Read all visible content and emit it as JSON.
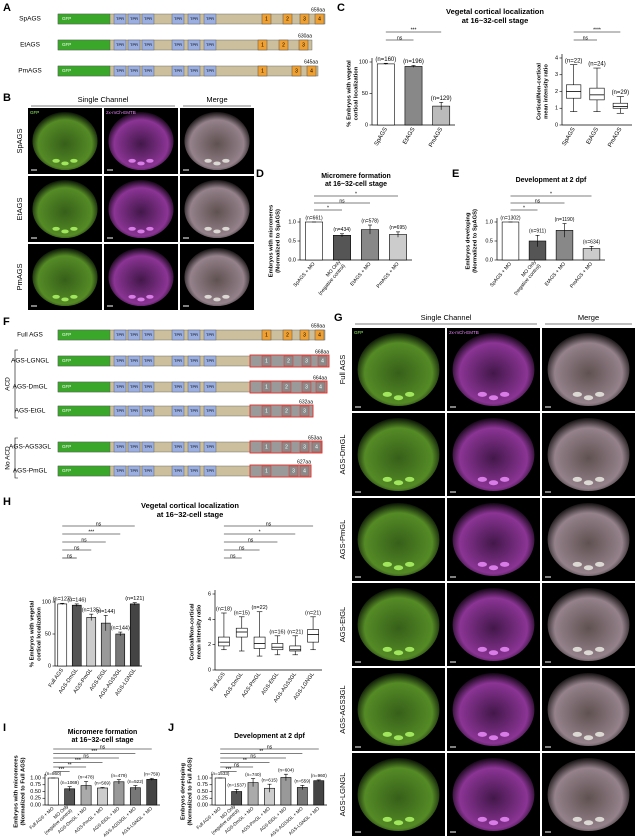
{
  "panel_labels": [
    "A",
    "B",
    "C",
    "D",
    "E",
    "F",
    "G",
    "H",
    "I",
    "J"
  ],
  "panel_titles": {
    "C": [
      "Vegetal cortical localization",
      "at 16~32-cell stage"
    ],
    "H": [
      "Vegetal cortical localization",
      "at 16~32-cell stage"
    ]
  },
  "domain_words": {
    "gfp": "GFP",
    "tpr": "TPR"
  },
  "diagrams_A": [
    {
      "name": "SpAGS",
      "length": "659aa",
      "motifs": [
        "1",
        "2",
        "3",
        "4"
      ]
    },
    {
      "name": "EtAGS",
      "length": "630aa",
      "motifs": [
        "1",
        "2",
        "3"
      ]
    },
    {
      "name": "PmAGS",
      "length": "645aa",
      "motifs": [
        "1",
        "3",
        "4"
      ]
    }
  ],
  "diagrams_F": {
    "groups": [
      "ACD",
      "No ACD"
    ],
    "rows": [
      {
        "name": "Full AGS",
        "length": "659aa",
        "motifs": [
          "1",
          "2",
          "3",
          "4"
        ]
      },
      {
        "name": "AGS-LGNGL",
        "length": "668aa",
        "motifs": [
          "1",
          "2",
          "3",
          "4"
        ]
      },
      {
        "name": "AGS-DmGL",
        "length": "664aa",
        "motifs": [
          "1",
          "2",
          "3",
          "4"
        ]
      },
      {
        "name": "AGS-EtGL",
        "length": "632aa",
        "motifs": [
          "1",
          "2",
          "3"
        ]
      },
      {
        "name": "AGS-AGS3GL",
        "length": "653aa",
        "motifs": [
          "1",
          "2",
          "3",
          "4"
        ]
      },
      {
        "name": "AGS-PmGL",
        "length": "627aa",
        "motifs": [
          "1",
          "3",
          "4"
        ]
      }
    ]
  },
  "images_B": {
    "header": "Single Channel",
    "merge": "Merge",
    "channels": [
      "GFP",
      "2x-mCh-EMTB"
    ],
    "rows": [
      "SpAGS",
      "EtAGS",
      "PmAGS"
    ]
  },
  "images_G": {
    "header": "Single Channel",
    "merge": "Merge",
    "channels": [
      "GFP",
      "2x-mCh-EMTB"
    ],
    "rows": [
      "Full AGS",
      "AGS-DmGL",
      "AGS-PmGL",
      "AGS-EtGL",
      "AGS-AGS3GL",
      "AGS-LGNGL"
    ]
  },
  "chart_data": [
    {
      "type": "bar",
      "ylabel": [
        "% Embryos with vegetal",
        "cortical localization"
      ],
      "categories": [
        [
          "SpAGS"
        ],
        [
          "EtAGS"
        ],
        [
          "PmAGS"
        ]
      ],
      "values": [
        97,
        93,
        30
      ],
      "errors": [
        1,
        1.5,
        6
      ],
      "n_labels": [
        "(n=160)",
        "(n=196)",
        "(n=129)"
      ],
      "colors": [
        "#ffffff",
        "#888888",
        "#bbbbbb"
      ],
      "ylim": [
        0,
        100
      ],
      "yticks": [
        0,
        50,
        100
      ],
      "comparisons": [
        {
          "pair": [
            0,
            2
          ],
          "label": "***"
        },
        {
          "pair": [
            0,
            1
          ],
          "label": "ns"
        }
      ]
    },
    {
      "type": "box",
      "ylabel": [
        "Cortical/Non-cortical",
        "mean intensity ratio"
      ],
      "categories": [
        [
          "SpAGS"
        ],
        [
          "EtAGS"
        ],
        [
          "PmAGS"
        ]
      ],
      "boxes": [
        {
          "min": 0.8,
          "q1": 1.6,
          "median": 2.0,
          "q3": 2.4,
          "max": 3.6
        },
        {
          "min": 0.8,
          "q1": 1.5,
          "median": 1.8,
          "q3": 2.2,
          "max": 3.4
        },
        {
          "min": 0.7,
          "q1": 1.0,
          "median": 1.1,
          "q3": 1.3,
          "max": 1.7
        }
      ],
      "n_labels": [
        "(n=22)",
        "(n=24)",
        "(n=29)"
      ],
      "ylim": [
        0,
        4
      ],
      "yticks": [
        0,
        1,
        2,
        3,
        4
      ],
      "comparisons": [
        {
          "pair": [
            0,
            2
          ],
          "label": "****"
        },
        {
          "pair": [
            0,
            1
          ],
          "label": "ns"
        }
      ]
    },
    {
      "type": "bar",
      "title": [
        "Micromere formation",
        "at 16~32-cell stage"
      ],
      "ylabel": [
        "Embryos with micromeres",
        "(Normalized to SpAGS)"
      ],
      "categories": [
        [
          "SpAGS + MO"
        ],
        [
          "MO Only",
          "(negative control)"
        ],
        [
          "EtAGS + MO"
        ],
        [
          "PmAGS + MO"
        ]
      ],
      "values": [
        1,
        0.65,
        0.8,
        0.67
      ],
      "errors": [
        0,
        0.04,
        0.12,
        0.07
      ],
      "n_labels": [
        "(n=661)",
        "(n=434)",
        "(n=578)",
        "(n=695)"
      ],
      "colors": [
        "#ffffff",
        "#555555",
        "#888888",
        "#cccccc"
      ],
      "ylim": [
        0,
        1
      ],
      "yticks": [
        {
          "value": 0,
          "label": "0.0"
        },
        0.5,
        {
          "value": 1,
          "label": "1.0"
        }
      ],
      "comparisons": [
        {
          "pair": [
            0,
            3
          ],
          "label": "*"
        },
        {
          "pair": [
            0,
            2
          ],
          "label": "ns"
        },
        {
          "pair": [
            0,
            1
          ],
          "label": "*"
        }
      ]
    },
    {
      "type": "bar",
      "title": [
        "Development at 2 dpf"
      ],
      "ylabel": [
        "Embryos developing",
        "(Normalized to SpAGS)"
      ],
      "categories": [
        [
          "SpAGS + MO"
        ],
        [
          "MO Only",
          "(negative control)"
        ],
        [
          "EtAGS + MO"
        ],
        [
          "PmAGS + MO"
        ]
      ],
      "values": [
        1,
        0.5,
        0.78,
        0.3
      ],
      "errors": [
        0,
        0.15,
        0.18,
        0.06
      ],
      "n_labels": [
        "(n=1302)",
        "(n=911)",
        "(n=1190)",
        "(n=634)"
      ],
      "colors": [
        "#ffffff",
        "#555555",
        "#888888",
        "#cccccc"
      ],
      "ylim": [
        0,
        1
      ],
      "yticks": [
        {
          "value": 0,
          "label": "0.0"
        },
        0.5,
        {
          "value": 1,
          "label": "1.0"
        }
      ],
      "comparisons": [
        {
          "pair": [
            0,
            3
          ],
          "label": "*"
        },
        {
          "pair": [
            0,
            2
          ],
          "label": "ns"
        },
        {
          "pair": [
            0,
            1
          ],
          "label": "*"
        }
      ]
    },
    {
      "type": "bar",
      "ylabel": [
        "% Embryos with vegetal",
        "cortical localization"
      ],
      "categories": [
        [
          "Full AGS"
        ],
        [
          "AGS-DmGL"
        ],
        [
          "AGS-PmGL"
        ],
        [
          "AGS-EtGL"
        ],
        [
          "AGS-AGS3GL"
        ],
        [
          "AGS-LGNGL"
        ]
      ],
      "values": [
        97,
        95,
        76,
        67,
        50,
        97
      ],
      "errors": [
        1,
        2,
        5,
        12,
        3,
        2
      ],
      "n_labels": [
        "(n=127)",
        "(n=146)",
        "(n=135)",
        "(n=144)",
        "(n=144)",
        "(n=121)"
      ],
      "colors": [
        "#ffffff",
        "#555555",
        "#cccccc",
        "#999999",
        "#777777",
        "#444444"
      ],
      "ylim": [
        0,
        100
      ],
      "yticks": [
        0,
        50,
        100
      ],
      "comparisons": [
        {
          "pair": [
            0,
            5
          ],
          "label": "ns"
        },
        {
          "pair": [
            0,
            4
          ],
          "label": "***"
        },
        {
          "pair": [
            0,
            3
          ],
          "label": "ns"
        },
        {
          "pair": [
            0,
            2
          ],
          "label": "ns"
        },
        {
          "pair": [
            0,
            1
          ],
          "label": "ns"
        }
      ]
    },
    {
      "type": "box",
      "ylabel": [
        "Cortical/Non-cortical",
        "mean intensity ratio"
      ],
      "categories": [
        [
          "Full AGS"
        ],
        [
          "AGS-DmGL"
        ],
        [
          "AGS-PmGL"
        ],
        [
          "AGS-EtGL"
        ],
        [
          "AGS-AGS3GL"
        ],
        [
          "AGS-LGNGL"
        ]
      ],
      "boxes": [
        {
          "min": 1.6,
          "q1": 1.9,
          "median": 2.2,
          "q3": 2.6,
          "max": 4.5
        },
        {
          "min": 1.5,
          "q1": 2.6,
          "median": 3.0,
          "q3": 3.3,
          "max": 4.2
        },
        {
          "min": 1.1,
          "q1": 1.7,
          "median": 2.1,
          "q3": 2.6,
          "max": 4.6
        },
        {
          "min": 1.2,
          "q1": 1.6,
          "median": 1.8,
          "q3": 2.1,
          "max": 2.7
        },
        {
          "min": 1.2,
          "q1": 1.5,
          "median": 1.6,
          "q3": 1.9,
          "max": 2.7
        },
        {
          "min": 1.6,
          "q1": 2.2,
          "median": 2.8,
          "q3": 3.2,
          "max": 4.2
        }
      ],
      "n_labels": [
        "(n=18)",
        "(n=15)",
        "(n=22)",
        "(n=16)",
        "(n=21)",
        "(n=21)"
      ],
      "ylim": [
        0,
        6
      ],
      "yticks": [
        0,
        2,
        4,
        6
      ],
      "comparisons": [
        {
          "pair": [
            0,
            5
          ],
          "label": "ns"
        },
        {
          "pair": [
            0,
            4
          ],
          "label": "*"
        },
        {
          "pair": [
            0,
            3
          ],
          "label": "ns"
        },
        {
          "pair": [
            0,
            2
          ],
          "label": "ns"
        },
        {
          "pair": [
            0,
            1
          ],
          "label": "ns"
        }
      ]
    },
    {
      "type": "bar",
      "title": [
        "Micromere formation",
        "at 16~32-cell stage"
      ],
      "ylabel": [
        "Embryos with micromeres",
        "(Normalized to Full AGS)"
      ],
      "categories": [
        [
          "Full AGS + MO"
        ],
        [
          "MO Only",
          "(negative control)"
        ],
        [
          "AGS-DmGL + MO"
        ],
        [
          "AGS-PmGL + MO"
        ],
        [
          "AGS-EtGL + MO"
        ],
        [
          "AGS-AGS3GL + MO"
        ],
        [
          "AGS-LGNGL + MO"
        ]
      ],
      "values": [
        1,
        0.6,
        0.72,
        0.63,
        0.86,
        0.64,
        0.95
      ],
      "errors": [
        0,
        0.08,
        0.15,
        0.02,
        0.08,
        0.08,
        0.04
      ],
      "n_labels": [
        "(n=860)",
        "(n=1069)",
        "(n=478)",
        "(n=569)",
        "(n=479)",
        "(n=522)",
        "(n=759)"
      ],
      "colors": [
        "#ffffff",
        "#555555",
        "#aaaaaa",
        "#cccccc",
        "#999999",
        "#777777",
        "#444444"
      ],
      "ylim": [
        0,
        1
      ],
      "yticks": [
        {
          "value": 0,
          "label": "0.00"
        },
        {
          "value": 0.25,
          "label": "0.25"
        },
        {
          "value": 0.5,
          "label": "0.50"
        },
        {
          "value": 0.75,
          "label": "0.75"
        },
        {
          "value": 1,
          "label": "1.00"
        }
      ],
      "comparisons": [
        {
          "pair": [
            0,
            6
          ],
          "label": "ns"
        },
        {
          "pair": [
            0,
            5
          ],
          "label": "***"
        },
        {
          "pair": [
            0,
            4
          ],
          "label": "ns"
        },
        {
          "pair": [
            0,
            3
          ],
          "label": "***"
        },
        {
          "pair": [
            0,
            2
          ],
          "label": "**"
        },
        {
          "pair": [
            0,
            1
          ],
          "label": "***"
        }
      ]
    },
    {
      "type": "bar",
      "title": [
        "Development at 2 dpf"
      ],
      "ylabel": [
        "Embryos developing",
        "(Normalized to Full AGS)"
      ],
      "categories": [
        [
          "Full AGS + MO"
        ],
        [
          "MO Only",
          "(negative control)"
        ],
        [
          "AGS-DmGL + MO"
        ],
        [
          "AGS-PmGL + MO"
        ],
        [
          "AGS-EtGL + MO"
        ],
        [
          "AGS-AGS3GL + MO"
        ],
        [
          "AGS-LGNGL + MO"
        ]
      ],
      "values": [
        1,
        0.5,
        0.83,
        0.62,
        1.02,
        0.65,
        0.9
      ],
      "errors": [
        0,
        0.08,
        0.15,
        0.15,
        0.12,
        0.08,
        0.03
      ],
      "n_labels": [
        "(n=1533)",
        "(n=1537)",
        "(n=740)",
        "(n=615)",
        "(n=604)",
        "(n=559)",
        "(n=960)"
      ],
      "colors": [
        "#ffffff",
        "#555555",
        "#aaaaaa",
        "#cccccc",
        "#999999",
        "#777777",
        "#444444"
      ],
      "ylim": [
        0,
        1
      ],
      "yticks": [
        {
          "value": 0,
          "label": "0.00"
        },
        {
          "value": 0.25,
          "label": "0.25"
        },
        {
          "value": 0.5,
          "label": "0.50"
        },
        {
          "value": 0.75,
          "label": "0.75"
        },
        {
          "value": 1,
          "label": "1.00"
        }
      ],
      "comparisons": [
        {
          "pair": [
            0,
            6
          ],
          "label": "ns"
        },
        {
          "pair": [
            0,
            5
          ],
          "label": "**"
        },
        {
          "pair": [
            0,
            4
          ],
          "label": "ns"
        },
        {
          "pair": [
            0,
            3
          ],
          "label": "**"
        },
        {
          "pair": [
            0,
            2
          ],
          "label": "ns"
        },
        {
          "pair": [
            0,
            1
          ],
          "label": "***"
        }
      ]
    }
  ]
}
